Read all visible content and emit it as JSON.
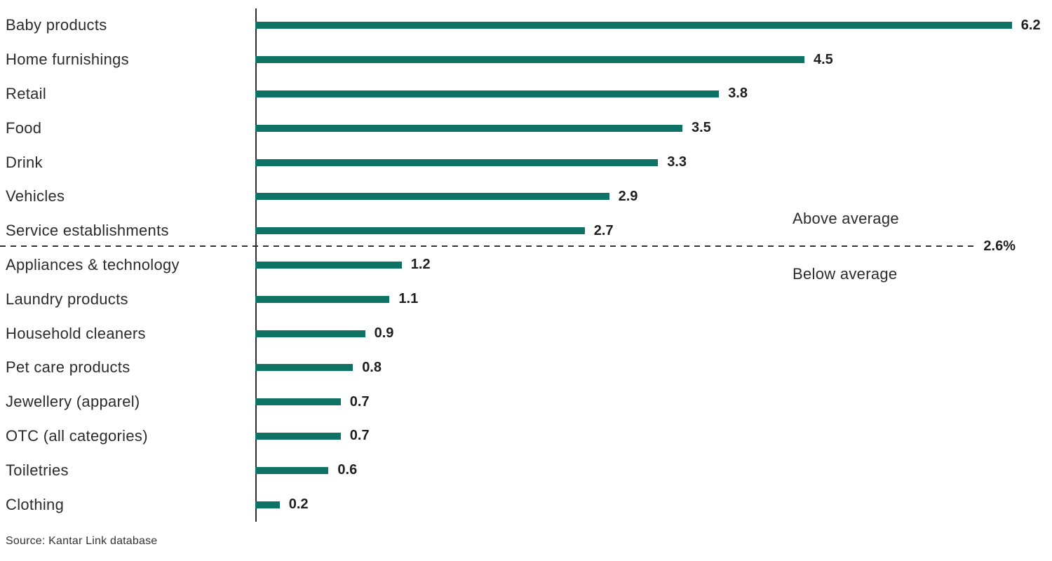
{
  "chart_data": {
    "type": "bar",
    "orientation": "horizontal",
    "title": "",
    "xlabel": "",
    "ylabel": "",
    "xlim": [
      0,
      6.5
    ],
    "grid": false,
    "legend": false,
    "categories": [
      "Baby products",
      "Home furnishings",
      "Retail",
      "Food",
      "Drink",
      "Vehicles",
      "Service establishments",
      "Appliances & technology",
      "Laundry products",
      "Household cleaners",
      "Pet care products",
      "Jewellery (apparel)",
      "OTC (all categories)",
      "Toiletries",
      "Clothing"
    ],
    "values": [
      6.2,
      4.5,
      3.8,
      3.5,
      3.3,
      2.9,
      2.7,
      1.2,
      1.1,
      0.9,
      0.8,
      0.7,
      0.7,
      0.6,
      0.2
    ],
    "threshold": {
      "value": 2.6,
      "label": "2.6%",
      "above_label": "Above average",
      "below_label": "Below average",
      "after_category_index": 6
    },
    "source": "Source: Kantar Link database"
  },
  "colors": {
    "bar": "#0e7364",
    "text": "#2b2b2b",
    "dashed_line": "#333333",
    "axis": "#2e2e2e"
  }
}
